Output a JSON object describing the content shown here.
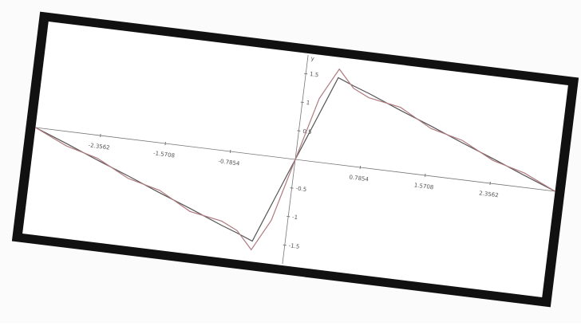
{
  "chart_data": {
    "type": "line",
    "ylabel": "y",
    "x": [
      -3.1416,
      -2.7489,
      -2.3562,
      -1.9635,
      -1.5708,
      -1.1781,
      -0.7854,
      -0.589,
      -0.3927,
      -0.1963,
      0,
      0.1963,
      0.3927,
      0.589,
      0.7854,
      1.1781,
      1.5708,
      1.9635,
      2.3562,
      2.7489,
      3.1416
    ],
    "series": [
      {
        "color": "#555555",
        "values": [
          0,
          -0.21,
          -0.43,
          -0.64,
          -0.86,
          -1.07,
          -1.29,
          -1.39,
          -1.5,
          -0.75,
          0,
          0.75,
          1.5,
          1.39,
          1.29,
          1.07,
          0.86,
          0.64,
          0.43,
          0.21,
          0
        ]
      },
      {
        "color": "#b07a80",
        "values": [
          0,
          -0.25,
          -0.4,
          -0.68,
          -0.82,
          -1.12,
          -1.22,
          -1.35,
          -1.65,
          -1.1,
          0,
          1.1,
          1.65,
          1.35,
          1.22,
          1.12,
          0.82,
          0.68,
          0.4,
          0.25,
          0
        ]
      }
    ],
    "xlim": [
      -3.1416,
      3.1416
    ],
    "ylim": [
      -1.8,
      1.8
    ],
    "xticks": [
      -2.3562,
      -1.5708,
      -0.7854,
      0.7854,
      1.5708,
      2.3562
    ],
    "yticks": [
      -1.5,
      -1,
      -0.5,
      0.5,
      1,
      1.5
    ]
  }
}
